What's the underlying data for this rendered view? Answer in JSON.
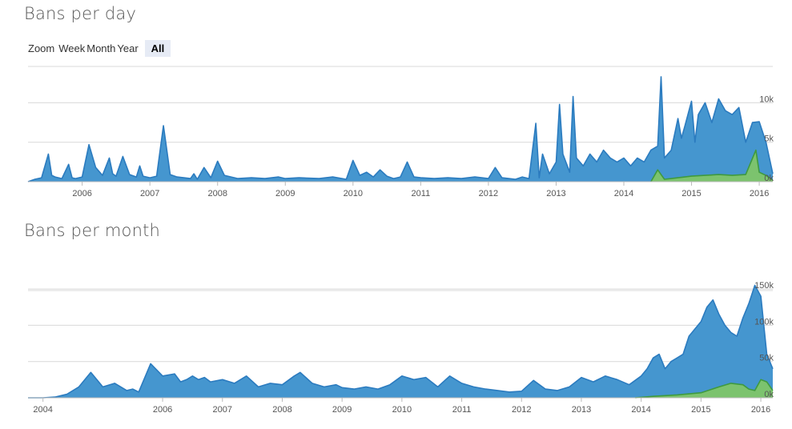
{
  "colors": {
    "series_total": "#2b7bbf",
    "series_total_fill": "#4596cf",
    "series_other": "#3f9a3f",
    "series_other_fill": "#7cc36e",
    "grid": "#d8d8d8"
  },
  "zoom": {
    "label": "Zoom",
    "buttons": [
      "Week",
      "Month",
      "Year",
      "All"
    ],
    "selected": "All"
  },
  "chart_data": [
    {
      "type": "area",
      "title": "Bans per day",
      "xlim": [
        2005.2,
        2016.2
      ],
      "ylim": [
        0,
        14000
      ],
      "x_ticks": [
        "2006",
        "2007",
        "2008",
        "2009",
        "2010",
        "2011",
        "2012",
        "2013",
        "2014",
        "2015",
        "2016"
      ],
      "y_ticks": [
        0,
        5000,
        10000
      ],
      "y_tick_labels": [
        "0k",
        "5k",
        "10k"
      ],
      "grid": true,
      "series": [
        {
          "x": [
            2005.2,
            2005.3,
            2005.4,
            2005.5,
            2005.55,
            2005.6,
            2005.7,
            2005.8,
            2005.85,
            2005.9,
            2006.0,
            2006.1,
            2006.2,
            2006.3,
            2006.4,
            2006.45,
            2006.5,
            2006.6,
            2006.7,
            2006.8,
            2006.85,
            2006.9,
            2007.0,
            2007.1,
            2007.2,
            2007.3,
            2007.4,
            2007.5,
            2007.6,
            2007.65,
            2007.7,
            2007.8,
            2007.9,
            2008.0,
            2008.1,
            2008.2,
            2008.3,
            2008.5,
            2008.7,
            2008.9,
            2009.0,
            2009.2,
            2009.5,
            2009.7,
            2009.9,
            2010.0,
            2010.1,
            2010.2,
            2010.3,
            2010.4,
            2010.5,
            2010.6,
            2010.7,
            2010.8,
            2010.9,
            2011.0,
            2011.2,
            2011.4,
            2011.6,
            2011.8,
            2012.0,
            2012.1,
            2012.2,
            2012.3,
            2012.4,
            2012.5,
            2012.6,
            2012.7,
            2012.75,
            2012.8,
            2012.9,
            2013.0,
            2013.05,
            2013.1,
            2013.2,
            2013.25,
            2013.3,
            2013.4,
            2013.5,
            2013.6,
            2013.7,
            2013.8,
            2013.9,
            2014.0,
            2014.1,
            2014.2,
            2014.3,
            2014.4,
            2014.5,
            2014.55,
            2014.6,
            2014.7,
            2014.8,
            2014.85,
            2014.9,
            2015.0,
            2015.05,
            2015.1,
            2015.2,
            2015.3,
            2015.4,
            2015.5,
            2015.6,
            2015.7,
            2015.8,
            2015.9,
            2016.0,
            2016.1,
            2016.2
          ],
          "values": [
            0,
            300,
            500,
            3500,
            800,
            600,
            400,
            2200,
            500,
            400,
            600,
            4700,
            1800,
            800,
            3000,
            1000,
            700,
            3200,
            900,
            600,
            2000,
            700,
            500,
            700,
            7100,
            900,
            600,
            500,
            400,
            1000,
            300,
            1800,
            500,
            2600,
            800,
            600,
            400,
            500,
            400,
            600,
            400,
            500,
            400,
            600,
            300,
            2700,
            800,
            1200,
            600,
            1500,
            700,
            400,
            600,
            2500,
            600,
            500,
            400,
            500,
            400,
            600,
            400,
            1800,
            500,
            400,
            300,
            600,
            400,
            7400,
            500,
            3500,
            1000,
            2500,
            9800,
            3500,
            1200,
            10800,
            3000,
            2000,
            3500,
            2500,
            4000,
            3000,
            2500,
            3000,
            2000,
            3000,
            2500,
            4000,
            4500,
            13300,
            3000,
            4000,
            8000,
            5500,
            7000,
            10200,
            5000,
            8500,
            10000,
            7500,
            10500,
            9000,
            8500,
            9400,
            5000,
            7500,
            7600,
            5000,
            1000
          ]
        },
        {
          "x": [
            2014.4,
            2014.5,
            2014.6,
            2014.7,
            2014.8,
            2014.9,
            2015.0,
            2015.2,
            2015.4,
            2015.6,
            2015.8,
            2015.95,
            2016.0,
            2016.1,
            2016.2
          ],
          "values": [
            0,
            1500,
            300,
            400,
            500,
            600,
            700,
            800,
            900,
            800,
            900,
            4000,
            1200,
            800,
            200
          ]
        }
      ]
    },
    {
      "type": "area",
      "title": "Bans per month",
      "xlim": [
        2003.75,
        2016.2
      ],
      "ylim": [
        0,
        160000
      ],
      "x_ticks": [
        "2004",
        "2006",
        "2007",
        "2008",
        "2009",
        "2010",
        "2011",
        "2012",
        "2013",
        "2014",
        "2015",
        "2016"
      ],
      "y_ticks": [
        0,
        50000,
        100000,
        150000
      ],
      "y_tick_labels": [
        "0k",
        "50k",
        "100k",
        "150k"
      ],
      "grid": true,
      "series": [
        {
          "x": [
            2003.75,
            2004.0,
            2004.2,
            2004.4,
            2004.6,
            2004.8,
            2005.0,
            2005.2,
            2005.4,
            2005.5,
            2005.6,
            2005.8,
            2006.0,
            2006.2,
            2006.3,
            2006.4,
            2006.5,
            2006.6,
            2006.7,
            2006.8,
            2007.0,
            2007.2,
            2007.4,
            2007.6,
            2007.8,
            2008.0,
            2008.2,
            2008.3,
            2008.5,
            2008.7,
            2008.9,
            2009.0,
            2009.2,
            2009.4,
            2009.6,
            2009.8,
            2010.0,
            2010.2,
            2010.4,
            2010.6,
            2010.8,
            2011.0,
            2011.2,
            2011.4,
            2011.6,
            2011.8,
            2012.0,
            2012.2,
            2012.4,
            2012.6,
            2012.8,
            2013.0,
            2013.2,
            2013.4,
            2013.6,
            2013.8,
            2014.0,
            2014.1,
            2014.2,
            2014.3,
            2014.4,
            2014.5,
            2014.6,
            2014.7,
            2014.8,
            2014.9,
            2015.0,
            2015.1,
            2015.2,
            2015.3,
            2015.4,
            2015.5,
            2015.6,
            2015.7,
            2015.8,
            2015.9,
            2016.0,
            2016.05,
            2016.1,
            2016.2
          ],
          "values": [
            0,
            0,
            1000,
            5000,
            15000,
            35000,
            15000,
            20000,
            10000,
            12000,
            8000,
            47000,
            30000,
            33000,
            22000,
            25000,
            30000,
            25000,
            28000,
            22000,
            25000,
            20000,
            30000,
            15000,
            20000,
            18000,
            30000,
            35000,
            20000,
            15000,
            18000,
            14000,
            12000,
            15000,
            12000,
            18000,
            30000,
            25000,
            28000,
            15000,
            30000,
            20000,
            15000,
            12000,
            10000,
            8000,
            9000,
            24000,
            12000,
            10000,
            15000,
            28000,
            22000,
            30000,
            25000,
            18000,
            30000,
            40000,
            55000,
            60000,
            40000,
            50000,
            55000,
            60000,
            85000,
            95000,
            105000,
            125000,
            135000,
            115000,
            100000,
            90000,
            85000,
            110000,
            130000,
            155000,
            140000,
            100000,
            60000,
            40000
          ]
        },
        {
          "x": [
            2013.9,
            2014.2,
            2014.6,
            2015.0,
            2015.3,
            2015.5,
            2015.7,
            2015.8,
            2015.9,
            2016.0,
            2016.1,
            2016.2
          ],
          "values": [
            0,
            2000,
            4000,
            7000,
            15000,
            20000,
            18000,
            12000,
            10000,
            25000,
            22000,
            10000
          ]
        }
      ]
    }
  ]
}
